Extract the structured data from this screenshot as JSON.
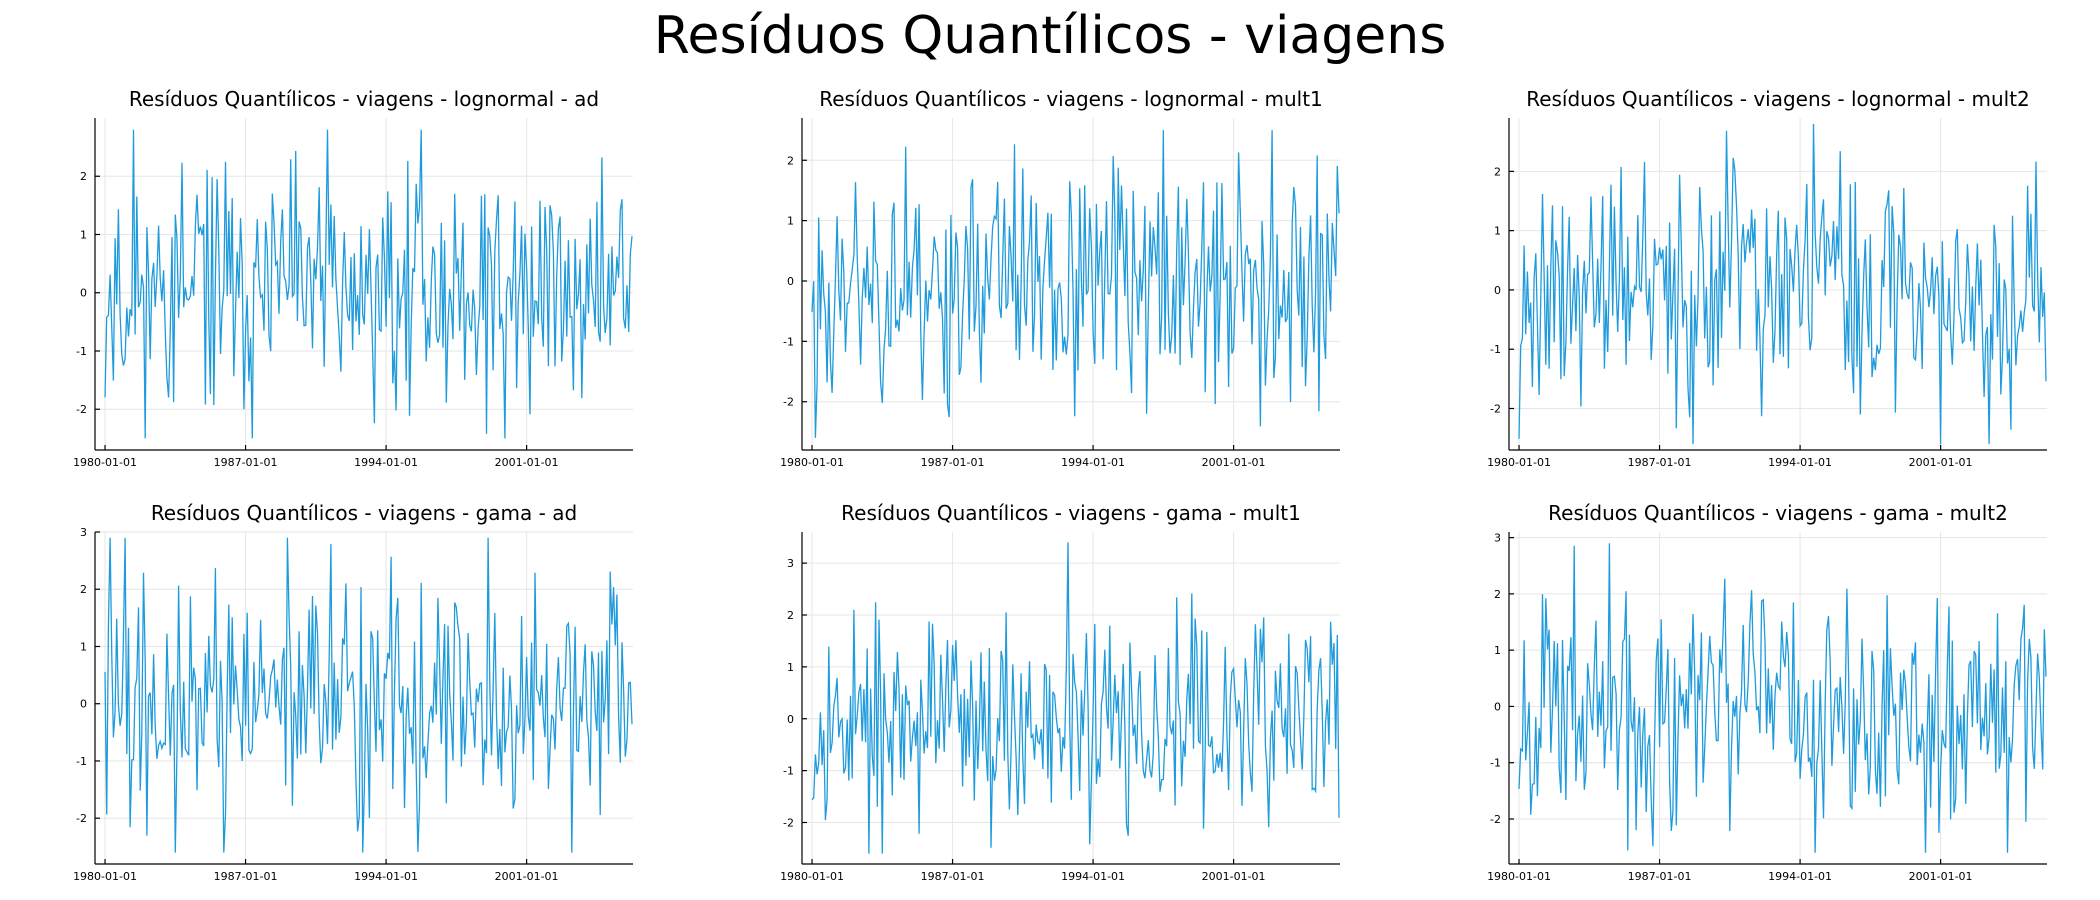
{
  "title": "Resíduos Quantílicos - viagens",
  "colors": {
    "series": "#1f9bdc",
    "grid": "#e6e6e6",
    "axis": "#000000"
  },
  "chart_data": [
    {
      "type": "line",
      "title": "Resíduos Quantílicos - viagens - lognormal - ad",
      "xticks": [
        "1980-01-01",
        "1987-01-01",
        "1994-01-01",
        "2001-01-01"
      ],
      "yticks": [
        -2,
        -1,
        0,
        1,
        2
      ],
      "ylim": [
        -2.7,
        3.0
      ],
      "xlim": [
        1979.5,
        2006.3
      ],
      "grid": true,
      "series": [
        {
          "x_start": "1980-01-01",
          "x_end": "2006-04-01",
          "seed": 11,
          "min": -2.5,
          "max": 2.8
        }
      ]
    },
    {
      "type": "line",
      "title": "Resíduos Quantílicos - viagens - lognormal - mult1",
      "xticks": [
        "1980-01-01",
        "1987-01-01",
        "1994-01-01",
        "2001-01-01"
      ],
      "yticks": [
        -2,
        -1,
        0,
        1,
        2
      ],
      "ylim": [
        -2.8,
        2.7
      ],
      "xlim": [
        1979.5,
        2006.3
      ],
      "grid": true,
      "series": [
        {
          "x_start": "1980-01-01",
          "x_end": "2006-04-01",
          "seed": 23,
          "min": -2.6,
          "max": 2.5
        }
      ]
    },
    {
      "type": "line",
      "title": "Resíduos Quantílicos - viagens - lognormal - mult2",
      "xticks": [
        "1980-01-01",
        "1987-01-01",
        "1994-01-01",
        "2001-01-01"
      ],
      "yticks": [
        -2,
        -1,
        0,
        1,
        2
      ],
      "ylim": [
        -2.7,
        2.9
      ],
      "xlim": [
        1979.5,
        2006.3
      ],
      "grid": true,
      "series": [
        {
          "x_start": "1980-01-01",
          "x_end": "2006-04-01",
          "seed": 37,
          "min": -2.6,
          "max": 2.8
        }
      ]
    },
    {
      "type": "line",
      "title": "Resíduos Quantílicos - viagens - gama - ad",
      "xticks": [
        "1980-01-01",
        "1987-01-01",
        "1994-01-01",
        "2001-01-01"
      ],
      "yticks": [
        -2,
        -1,
        0,
        1,
        2,
        3
      ],
      "ylim": [
        -2.8,
        3.0
      ],
      "xlim": [
        1979.5,
        2006.3
      ],
      "grid": true,
      "series": [
        {
          "x_start": "1980-01-01",
          "x_end": "2006-04-01",
          "seed": 41,
          "min": -2.6,
          "max": 2.9
        }
      ]
    },
    {
      "type": "line",
      "title": "Resíduos Quantílicos - viagens - gama - mult1",
      "xticks": [
        "1980-01-01",
        "1987-01-01",
        "1994-01-01",
        "2001-01-01"
      ],
      "yticks": [
        -2,
        -1,
        0,
        1,
        2,
        3
      ],
      "ylim": [
        -2.8,
        3.6
      ],
      "xlim": [
        1979.5,
        2006.3
      ],
      "grid": true,
      "series": [
        {
          "x_start": "1980-01-01",
          "x_end": "2006-04-01",
          "seed": 53,
          "min": -2.6,
          "max": 3.4
        }
      ]
    },
    {
      "type": "line",
      "title": "Resíduos Quantílicos - viagens - gama - mult2",
      "xticks": [
        "1980-01-01",
        "1987-01-01",
        "1994-01-01",
        "2001-01-01"
      ],
      "yticks": [
        -2,
        -1,
        0,
        1,
        2,
        3
      ],
      "ylim": [
        -2.8,
        3.1
      ],
      "xlim": [
        1979.5,
        2006.3
      ],
      "grid": true,
      "series": [
        {
          "x_start": "1980-01-01",
          "x_end": "2006-04-01",
          "seed": 67,
          "min": -2.6,
          "max": 2.9
        }
      ]
    }
  ]
}
